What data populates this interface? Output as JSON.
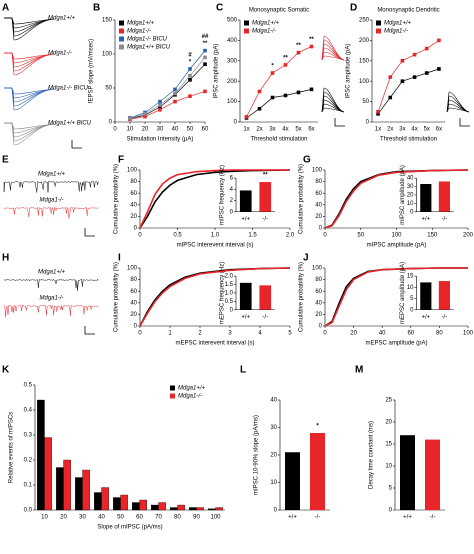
{
  "chart_data": [
    {
      "type": "traces",
      "label": "A",
      "labels": [
        "Mdga1+/+",
        "Mdga1-/-",
        "Mdga1-/- BICU",
        "Mdga1+/+ BICU"
      ],
      "colors": [
        "#000000",
        "#e8262a",
        "#2b5fb4",
        "#8c8c8c"
      ]
    },
    {
      "type": "line",
      "label": "B",
      "x": [
        10,
        20,
        30,
        40,
        50,
        60
      ],
      "xlim": [
        0,
        60
      ],
      "xticks": [
        0,
        10,
        20,
        30,
        40,
        50,
        60
      ],
      "ylim": [
        0,
        150
      ],
      "yticks": [
        0,
        50,
        100,
        150
      ],
      "xlabel": "Stimulation Intensity (μA)",
      "ylabel": "fEPSP slope (mV/msec)",
      "markers": true,
      "legend": "upper left",
      "series": [
        {
          "name": "Mdga1+/+",
          "color": "#000000",
          "values": [
            5,
            10,
            22,
            40,
            62,
            85
          ]
        },
        {
          "name": "Mdga1-/-",
          "color": "#e8262a",
          "values": [
            4,
            8,
            18,
            30,
            38,
            45
          ]
        },
        {
          "name": "Mdga1-/- BICU",
          "color": "#2b5fb4",
          "values": [
            6,
            14,
            30,
            48,
            78,
            105
          ]
        },
        {
          "name": "Mdga1+/+ BICU",
          "color": "#8c8c8c",
          "values": [
            5,
            12,
            25,
            42,
            68,
            95
          ]
        }
      ],
      "annotations": [
        null,
        null,
        null,
        null,
        [
          "*",
          "#"
        ],
        [
          "**",
          "##"
        ]
      ]
    },
    {
      "type": "line",
      "label": "C",
      "title": "Monosynaptic Somatic",
      "categories": [
        "1x",
        "2x",
        "3x",
        "4x",
        "5x",
        "6x"
      ],
      "ylim": [
        0,
        500
      ],
      "yticks": [
        0,
        100,
        200,
        300,
        400,
        500
      ],
      "xlabel": "Threshold stimulation",
      "ylabel": "IPSC amplitude (pA)",
      "markers": true,
      "legend": "upper left",
      "series": [
        {
          "name": "Mdga1+/+",
          "color": "#000000",
          "values": [
            20,
            65,
            120,
            130,
            145,
            160
          ]
        },
        {
          "name": "Mdga1-/-",
          "color": "#e8262a",
          "values": [
            25,
            150,
            240,
            280,
            340,
            370
          ]
        }
      ],
      "annotations": [
        null,
        null,
        "*",
        "**",
        "**",
        "**"
      ]
    },
    {
      "type": "line",
      "label": "D",
      "title": "Monosynaptic Dendritic",
      "categories": [
        "1x",
        "2x",
        "3x",
        "4x",
        "5x",
        "6x"
      ],
      "ylim": [
        0,
        250
      ],
      "yticks": [
        0,
        50,
        100,
        150,
        200,
        250
      ],
      "xlabel": "Threshold stimulation",
      "ylabel": "IPSC amplitude (pA)",
      "markers": true,
      "legend": "upper left",
      "series": [
        {
          "name": "Mdga1+/+",
          "color": "#000000",
          "values": [
            20,
            60,
            100,
            110,
            120,
            130
          ]
        },
        {
          "name": "Mdga1-/-",
          "color": "#e8262a",
          "values": [
            25,
            110,
            150,
            165,
            180,
            200
          ]
        }
      ]
    },
    {
      "type": "traces",
      "label": "E",
      "labels": [
        "Mdga1+/+",
        "Mdga1-/-"
      ],
      "colors": [
        "#000000",
        "#e8262a"
      ]
    },
    {
      "type": "line",
      "label": "F",
      "x": [
        0,
        0.1,
        0.2,
        0.3,
        0.4,
        0.5,
        0.75,
        1,
        1.25,
        1.5,
        2
      ],
      "xlim": [
        0,
        2
      ],
      "xticks": [
        0,
        0.5,
        {
          "value": 1,
          "label": "1.0"
        },
        1.5,
        {
          "value": 2,
          "label": "2.0"
        }
      ],
      "ylim": [
        0,
        100
      ],
      "yticks": [
        0,
        20,
        40,
        60,
        80,
        100
      ],
      "xlabel": "mIPSC interevent interval (s)",
      "ylabel": "Cumulative probability (%)",
      "markers": false,
      "series": [
        {
          "color": "#000000",
          "values": [
            0,
            20,
            45,
            62,
            74,
            82,
            92,
            96,
            98,
            99,
            100
          ]
        },
        {
          "color": "#e8262a",
          "values": [
            0,
            28,
            58,
            76,
            86,
            92,
            97,
            99,
            100,
            100,
            100
          ]
        }
      ],
      "inset": {
        "type": "bar",
        "categories": [
          "+/+",
          "-/-"
        ],
        "values": [
          3.8,
          5.3
        ],
        "colors": [
          "#000000",
          "#e8262a"
        ],
        "ylim": [
          0,
          6
        ],
        "yticks": [
          0,
          2,
          4,
          6
        ],
        "ylabel": "mIPSC frequency (Hz)",
        "annotations": [
          null,
          "**"
        ]
      }
    },
    {
      "type": "line",
      "label": "G",
      "x": [
        0,
        10,
        20,
        30,
        40,
        50,
        75,
        100,
        150,
        200
      ],
      "xlim": [
        0,
        200
      ],
      "xticks": [
        0,
        50,
        100,
        150,
        200
      ],
      "ylim": [
        0,
        100
      ],
      "yticks": [
        0,
        20,
        40,
        60,
        80,
        100
      ],
      "xlabel": "mIPSC amplitude (pA)",
      "ylabel": "Cumulative probability (%)",
      "markers": false,
      "series": [
        {
          "color": "#000000",
          "values": [
            0,
            5,
            25,
            50,
            68,
            80,
            92,
            97,
            99,
            100
          ]
        },
        {
          "color": "#e8262a",
          "values": [
            0,
            4,
            22,
            46,
            64,
            77,
            91,
            96,
            99,
            100
          ]
        }
      ],
      "inset": {
        "type": "bar",
        "categories": [
          "+/+",
          "-/-"
        ],
        "values": [
          33,
          36
        ],
        "colors": [
          "#000000",
          "#e8262a"
        ],
        "ylim": [
          0,
          40
        ],
        "yticks": [
          0,
          10,
          20,
          30,
          40
        ],
        "ylabel": "mIPSC amplitude (pA)"
      }
    },
    {
      "type": "traces",
      "label": "H",
      "labels": [
        "Mdga1+/+",
        "Mdga1-/-"
      ],
      "colors": [
        "#000000",
        "#e8262a"
      ]
    },
    {
      "type": "line",
      "label": "I",
      "x": [
        0,
        0.25,
        0.5,
        0.75,
        1,
        1.5,
        2,
        3,
        4,
        5
      ],
      "xlim": [
        0,
        5
      ],
      "xticks": [
        0,
        1,
        2,
        3,
        4,
        5
      ],
      "ylim": [
        0,
        100
      ],
      "yticks": [
        0,
        20,
        40,
        60,
        80,
        100
      ],
      "xlabel": "mEPSC interevent interval (s)",
      "ylabel": "Cumulative probability (%)",
      "markers": false,
      "series": [
        {
          "color": "#000000",
          "values": [
            0,
            25,
            45,
            60,
            71,
            84,
            91,
            97,
            99,
            100
          ]
        },
        {
          "color": "#e8262a",
          "values": [
            0,
            22,
            42,
            57,
            68,
            82,
            90,
            96,
            99,
            100
          ]
        }
      ],
      "inset": {
        "type": "bar",
        "categories": [
          "+/+",
          "-/-"
        ],
        "values": [
          1.6,
          1.45
        ],
        "colors": [
          "#000000",
          "#e8262a"
        ],
        "ylim": [
          0,
          2
        ],
        "yticks": [
          0,
          0.5,
          {
            "value": 1,
            "label": "1.0"
          },
          1.5,
          {
            "value": 2,
            "label": "2.0"
          }
        ],
        "ylabel": "mEPSC frequency (Hz)"
      }
    },
    {
      "type": "line",
      "label": "J",
      "x": [
        0,
        5,
        10,
        15,
        20,
        30,
        40,
        60,
        80,
        100
      ],
      "xlim": [
        0,
        100
      ],
      "xticks": [
        0,
        20,
        40,
        60,
        80,
        100
      ],
      "ylim": [
        0,
        100
      ],
      "yticks": [
        0,
        20,
        40,
        60,
        80,
        100
      ],
      "xlabel": "mEPSC amplitude (pA)",
      "ylabel": "Cumulative probability (%)",
      "markers": false,
      "series": [
        {
          "color": "#000000",
          "values": [
            0,
            8,
            40,
            68,
            82,
            94,
            97,
            99,
            100,
            100
          ]
        },
        {
          "color": "#e8262a",
          "values": [
            0,
            6,
            35,
            63,
            80,
            93,
            97,
            99,
            100,
            100
          ]
        }
      ],
      "inset": {
        "type": "bar",
        "categories": [
          "+/+",
          "-/-"
        ],
        "values": [
          12.2,
          12.8
        ],
        "colors": [
          "#000000",
          "#e8262a"
        ],
        "ylim": [
          0,
          15
        ],
        "yticks": [
          0,
          5,
          10,
          15
        ],
        "ylabel": "mEPSC amplitude (pA)"
      }
    },
    {
      "type": "bar",
      "label": "K",
      "categories": [
        "10",
        "20",
        "30",
        "40",
        "50",
        "60",
        "70",
        "80",
        "90",
        "100"
      ],
      "ylim": [
        0,
        0.5
      ],
      "yticks": [
        {
          "value": 0,
          "label": "0.0"
        },
        0.1,
        0.2,
        0.3,
        0.4,
        0.5
      ],
      "xlabel": "Slope of mIPSC (pA/ms)",
      "ylabel": "Relative events of mIPSCs",
      "legend": "upper right",
      "series": [
        {
          "name": "Mdga1+/+",
          "color": "#000000",
          "values": [
            0.44,
            0.17,
            0.13,
            0.07,
            0.05,
            0.03,
            0.02,
            0.01,
            0.01,
            0.005
          ]
        },
        {
          "name": "Mdga1-/-",
          "color": "#e8262a",
          "values": [
            0.29,
            0.2,
            0.16,
            0.09,
            0.06,
            0.04,
            0.03,
            0.02,
            0.01,
            0.01
          ]
        }
      ]
    },
    {
      "type": "bar",
      "label": "L",
      "categories": [
        "+/+",
        "-/-"
      ],
      "values": [
        21,
        28
      ],
      "colors": [
        "#000000",
        "#e8262a"
      ],
      "ylim": [
        0,
        40
      ],
      "yticks": [
        0,
        10,
        20,
        30,
        40
      ],
      "ylabel": "mIPSC 10-90% slope (pA/ms)",
      "annotations": [
        null,
        "*"
      ]
    },
    {
      "type": "bar",
      "label": "M",
      "categories": [
        "+/+",
        "-/-"
      ],
      "values": [
        17,
        16
      ],
      "colors": [
        "#000000",
        "#e8262a"
      ],
      "ylim": [
        0,
        25
      ],
      "yticks": [
        0,
        5,
        10,
        15,
        20,
        25
      ],
      "ylabel": "Decay time constant (ms)"
    }
  ]
}
